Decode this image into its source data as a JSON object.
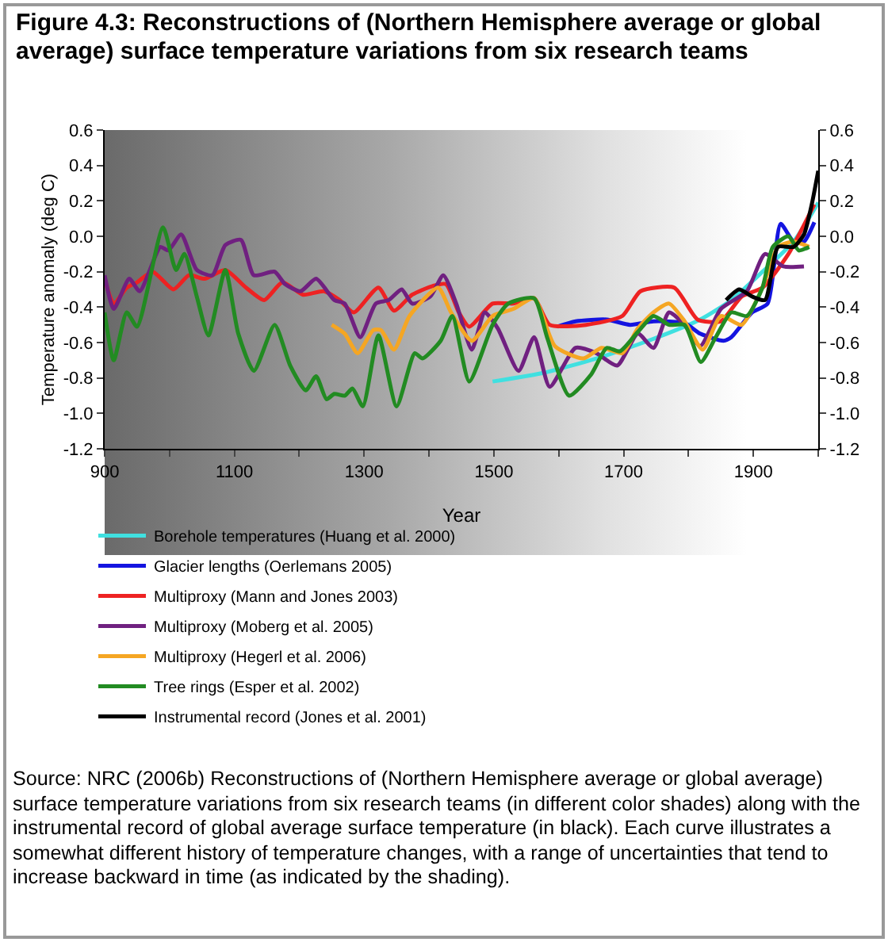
{
  "chart_data": {
    "type": "line",
    "title": "Figure 4.3: Reconstructions of (Northern Hemisphere average or global average) surface temperature variations from six research teams",
    "xlabel": "Year",
    "ylabel": "Temperature anomaly (deg C)",
    "xlim": [
      900,
      2000
    ],
    "xticks": [
      900,
      {
        "value": 1000,
        "label": null
      },
      1100,
      {
        "value": 1200,
        "label": null
      },
      1300,
      {
        "value": 1400,
        "label": null
      },
      1500,
      {
        "value": 1600,
        "label": null
      },
      1700,
      {
        "value": 1800,
        "label": null
      },
      1900,
      {
        "value": 2000,
        "label": null
      }
    ],
    "ylim": [
      -1.2,
      0.6
    ],
    "yticks": [
      -1.2,
      {
        "value": -1,
        "label": "-1.0"
      },
      -0.8,
      -0.6,
      -0.4,
      -0.2,
      {
        "value": 0,
        "label": "0.0"
      },
      0.2,
      0.4,
      0.6
    ],
    "y2lim": [
      -1.2,
      0.6
    ],
    "y2ticks": [
      -1.2,
      {
        "value": -1,
        "label": "-1.0"
      },
      -0.8,
      -0.6,
      -0.4,
      -0.2,
      {
        "value": 0,
        "label": "0.0"
      },
      0.2,
      0.4,
      0.6
    ],
    "legend": "bottom",
    "series": [
      {
        "name": "Borehole temperatures (Huang et al. 2000)",
        "color": "#40e0e0",
        "x": [
          1498,
          1578,
          1658,
          1738,
          1818,
          1866,
          1914,
          1962,
          2000
        ],
        "values": [
          -0.82,
          -0.77,
          -0.69,
          -0.59,
          -0.47,
          -0.36,
          -0.2,
          -0.03,
          0.19
        ]
      },
      {
        "name": "Glacier lengths (Oerlemans 2005)",
        "color": "#1414e0",
        "x": [
          1598,
          1626,
          1674,
          1710,
          1746,
          1794,
          1818,
          1854,
          1866,
          1898,
          1922,
          1942,
          1962,
          1978,
          1994
        ],
        "values": [
          -0.51,
          -0.48,
          -0.47,
          -0.5,
          -0.48,
          -0.49,
          -0.55,
          -0.59,
          -0.57,
          -0.43,
          -0.38,
          0.07,
          -0.03,
          -0.03,
          0.08
        ]
      },
      {
        "name": "Multiproxy (Mann and Jones 2003)",
        "color": "#ee2222",
        "x": [
          900,
          914,
          934,
          950,
          974,
          1006,
          1030,
          1054,
          1086,
          1118,
          1146,
          1174,
          1206,
          1238,
          1262,
          1284,
          1322,
          1346,
          1374,
          1406,
          1426,
          1446,
          1462,
          1498,
          1530,
          1562,
          1586,
          1642,
          1698,
          1726,
          1778,
          1814,
          1850,
          1882,
          1914,
          1954,
          1994
        ],
        "values": [
          -0.24,
          -0.38,
          -0.29,
          -0.26,
          -0.2,
          -0.3,
          -0.22,
          -0.24,
          -0.19,
          -0.29,
          -0.36,
          -0.26,
          -0.33,
          -0.31,
          -0.36,
          -0.43,
          -0.29,
          -0.42,
          -0.33,
          -0.28,
          -0.27,
          -0.43,
          -0.51,
          -0.38,
          -0.38,
          -0.35,
          -0.5,
          -0.5,
          -0.45,
          -0.31,
          -0.29,
          -0.47,
          -0.48,
          -0.34,
          -0.29,
          -0.1,
          0.18
        ]
      },
      {
        "name": "Multiproxy (Moberg et al. 2005)",
        "color": "#702080",
        "x": [
          900,
          914,
          938,
          954,
          986,
          998,
          1018,
          1042,
          1066,
          1086,
          1110,
          1130,
          1162,
          1178,
          1202,
          1226,
          1254,
          1270,
          1294,
          1318,
          1338,
          1358,
          1374,
          1402,
          1422,
          1442,
          1466,
          1486,
          1506,
          1538,
          1562,
          1586,
          1626,
          1658,
          1690,
          1722,
          1746,
          1770,
          1794,
          1818,
          1850,
          1890,
          1918,
          1946,
          1978
        ],
        "values": [
          -0.22,
          -0.41,
          -0.24,
          -0.31,
          -0.06,
          -0.08,
          0.01,
          -0.19,
          -0.22,
          -0.05,
          -0.02,
          -0.22,
          -0.2,
          -0.27,
          -0.31,
          -0.24,
          -0.36,
          -0.38,
          -0.57,
          -0.38,
          -0.36,
          -0.3,
          -0.38,
          -0.34,
          -0.22,
          -0.38,
          -0.64,
          -0.43,
          -0.52,
          -0.76,
          -0.57,
          -0.85,
          -0.63,
          -0.66,
          -0.73,
          -0.55,
          -0.63,
          -0.43,
          -0.5,
          -0.62,
          -0.41,
          -0.31,
          -0.1,
          -0.17,
          -0.17
        ]
      },
      {
        "name": "Multiproxy (Hegerl et al. 2006)",
        "color": "#f5a623",
        "x": [
          1250,
          1270,
          1290,
          1314,
          1326,
          1346,
          1370,
          1414,
          1434,
          1466,
          1498,
          1530,
          1562,
          1594,
          1638,
          1666,
          1698,
          1722,
          1746,
          1770,
          1794,
          1822,
          1850,
          1882,
          1914,
          1938,
          1962,
          1986
        ],
        "values": [
          -0.5,
          -0.55,
          -0.66,
          -0.53,
          -0.53,
          -0.64,
          -0.45,
          -0.29,
          -0.43,
          -0.59,
          -0.45,
          -0.41,
          -0.35,
          -0.62,
          -0.69,
          -0.63,
          -0.66,
          -0.52,
          -0.43,
          -0.38,
          -0.48,
          -0.64,
          -0.45,
          -0.5,
          -0.29,
          -0.06,
          -0.03,
          -0.06
        ]
      },
      {
        "name": "Tree rings (Esper et al. 2002)",
        "color": "#228b22",
        "x": [
          900,
          914,
          934,
          950,
          990,
          1010,
          1023,
          1042,
          1060,
          1086,
          1106,
          1130,
          1162,
          1186,
          1210,
          1226,
          1242,
          1254,
          1270,
          1282,
          1298,
          1322,
          1350,
          1378,
          1390,
          1418,
          1436,
          1462,
          1498,
          1522,
          1562,
          1582,
          1616,
          1650,
          1674,
          1694,
          1722,
          1746,
          1770,
          1794,
          1819,
          1842,
          1866,
          1890,
          1914,
          1930,
          1954,
          1970,
          1986
        ],
        "values": [
          -0.43,
          -0.7,
          -0.43,
          -0.51,
          0.05,
          -0.19,
          -0.1,
          -0.34,
          -0.56,
          -0.19,
          -0.55,
          -0.76,
          -0.5,
          -0.73,
          -0.87,
          -0.79,
          -0.92,
          -0.89,
          -0.9,
          -0.86,
          -0.96,
          -0.56,
          -0.96,
          -0.66,
          -0.69,
          -0.59,
          -0.45,
          -0.82,
          -0.5,
          -0.38,
          -0.35,
          -0.57,
          -0.9,
          -0.78,
          -0.63,
          -0.65,
          -0.54,
          -0.45,
          -0.5,
          -0.5,
          -0.71,
          -0.57,
          -0.43,
          -0.45,
          -0.29,
          -0.06,
          0,
          -0.08,
          -0.06
        ]
      },
      {
        "name": "Instrumental record (Jones et al. 2001)",
        "color": "#000000",
        "x": [
          1858,
          1878,
          1898,
          1918,
          1938,
          1962,
          1978,
          1990,
          2000
        ],
        "values": [
          -0.36,
          -0.3,
          -0.34,
          -0.36,
          -0.06,
          -0.06,
          0.01,
          0.18,
          0.37
        ]
      }
    ],
    "annotations": [
      "Source: NRC (2006b) Reconstructions of (Northern Hemisphere average or global average) surface temperature variations from six research teams (in different color shades) along with the instrumental record of global average surface temperature (in black). Each curve illustrates a somewhat different history of temperature changes, with a range of uncertainties that tend to increase backward in time (as indicated by the shading)."
    ]
  }
}
